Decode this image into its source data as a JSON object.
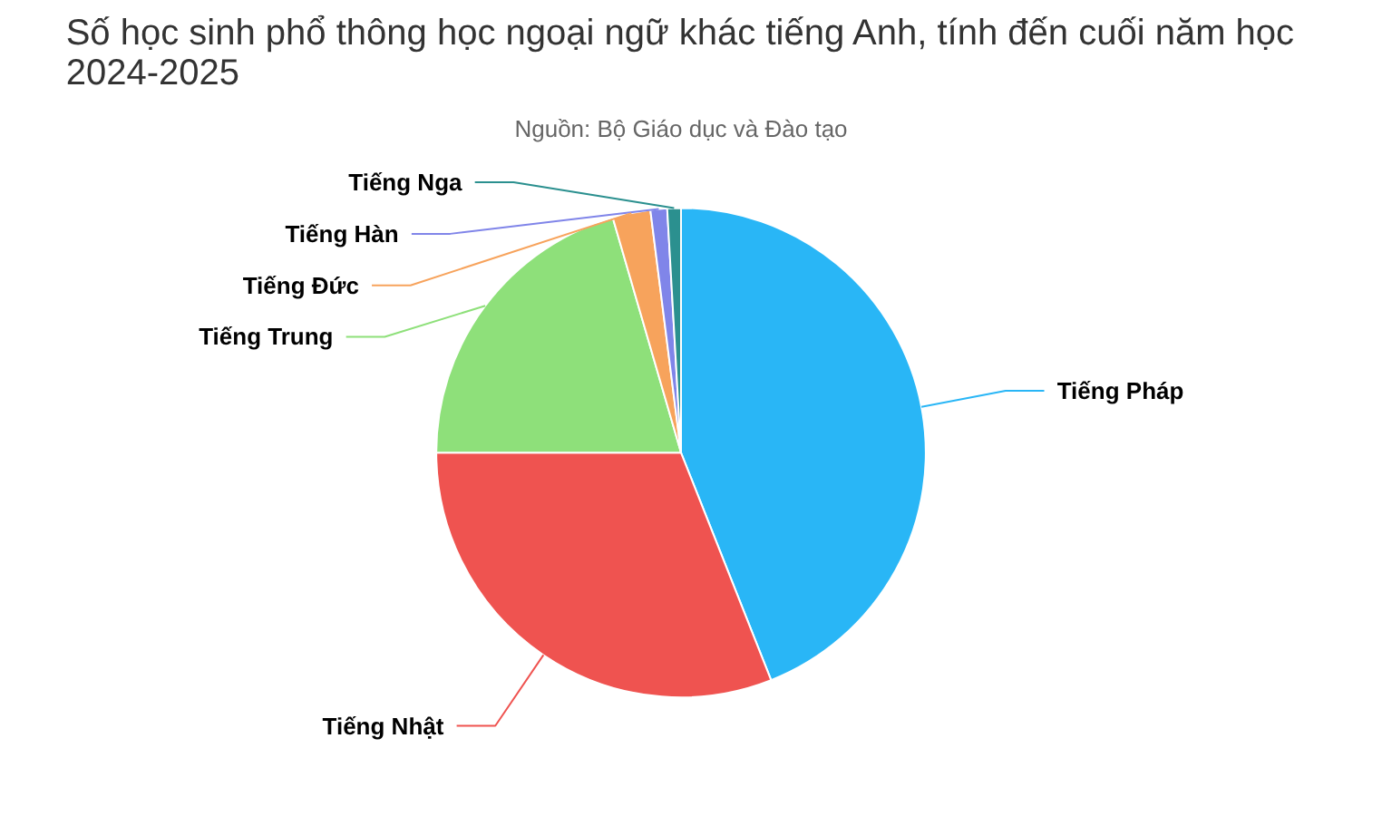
{
  "chart_data": {
    "type": "pie",
    "title": "Số học sinh phổ thông học ngoại ngữ khác tiếng Anh, tính đến cuối năm học\n2024-2025",
    "subtitle": "Nguồn: Bộ Giáo dục và Đào tạo",
    "categories": [
      "Tiếng Pháp",
      "Tiếng Nhật",
      "Tiếng Trung",
      "Tiếng Đức",
      "Tiếng Hàn",
      "Tiếng Nga"
    ],
    "values": [
      44,
      31,
      20.5,
      2.5,
      1.1,
      0.9
    ],
    "colors": [
      "#29b6f6",
      "#ef5350",
      "#8ee07a",
      "#f7a35c",
      "#8085e9",
      "#2b908f"
    ]
  }
}
